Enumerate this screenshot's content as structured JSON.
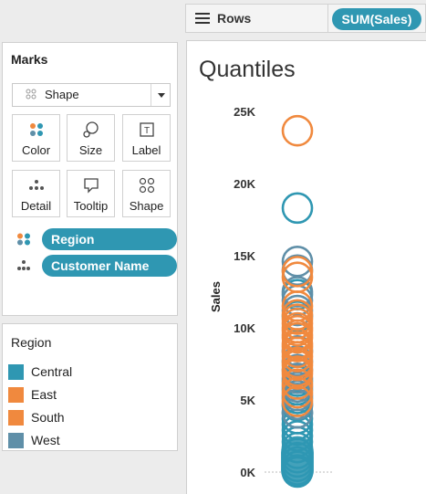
{
  "rows_shelf": {
    "label": "Rows",
    "pill": "SUM(Sales)"
  },
  "marks": {
    "title": "Marks",
    "mark_type": "Shape",
    "buttons": {
      "color": "Color",
      "size": "Size",
      "label": "Label",
      "detail": "Detail",
      "tooltip": "Tooltip",
      "shape": "Shape"
    },
    "fields": {
      "region": "Region",
      "customer_name": "Customer Name"
    }
  },
  "legend": {
    "title": "Region",
    "items": [
      {
        "label": "Central",
        "color": "#2f97b2"
      },
      {
        "label": "East",
        "color": "#f0893e"
      },
      {
        "label": "South",
        "color": "#f0893e"
      },
      {
        "label": "West",
        "color": "#5f8fa8"
      }
    ]
  },
  "colors": {
    "central": "#2f97b2",
    "east": "#f0893e",
    "south": "#f0893e",
    "west": "#5f8fa8",
    "pill": "#2f97b2"
  },
  "chart_data": {
    "type": "scatter",
    "title": "Quantiles",
    "ylabel": "Sales",
    "ylim": [
      0,
      25000
    ],
    "ytick_labels": [
      "0K",
      "5K",
      "10K",
      "15K",
      "20K",
      "25K"
    ],
    "yticks": [
      0,
      5000,
      10000,
      15000,
      20000,
      25000
    ],
    "marker": "open-circle",
    "series": [
      {
        "name": "East",
        "color": "#f0893e",
        "values": [
          23660,
          13900,
          11500,
          10900,
          10300,
          9800,
          9300,
          8700,
          8000,
          7400,
          6800,
          6100,
          5500,
          4900
        ]
      },
      {
        "name": "South",
        "color": "#f0893e",
        "values": [
          13500,
          10600,
          10000,
          9500,
          8900,
          8300,
          7600,
          7000
        ]
      },
      {
        "name": "West",
        "color": "#5f8fa8",
        "values": [
          14600,
          14000,
          12500,
          11900,
          11200,
          8400,
          7700,
          7100,
          6500,
          5900,
          5300,
          4700,
          4100
        ]
      },
      {
        "name": "Central",
        "color": "#2f97b2",
        "values": [
          18300,
          12300,
          10800,
          6300,
          5700,
          5100,
          4600,
          4100,
          3700,
          3300,
          2900,
          2500,
          2100,
          1700,
          1300,
          1000,
          700,
          400,
          150,
          0
        ]
      }
    ]
  }
}
